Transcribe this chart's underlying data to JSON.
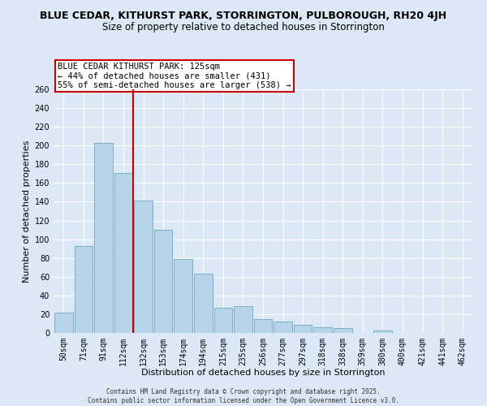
{
  "title": "BLUE CEDAR, KITHURST PARK, STORRINGTON, PULBOROUGH, RH20 4JH",
  "subtitle": "Size of property relative to detached houses in Storrington",
  "xlabel": "Distribution of detached houses by size in Storrington",
  "ylabel": "Number of detached properties",
  "categories": [
    "50sqm",
    "71sqm",
    "91sqm",
    "112sqm",
    "132sqm",
    "153sqm",
    "174sqm",
    "194sqm",
    "215sqm",
    "235sqm",
    "256sqm",
    "277sqm",
    "297sqm",
    "318sqm",
    "338sqm",
    "359sqm",
    "380sqm",
    "400sqm",
    "421sqm",
    "441sqm",
    "462sqm"
  ],
  "values": [
    22,
    93,
    203,
    171,
    141,
    110,
    79,
    63,
    27,
    29,
    15,
    12,
    9,
    6,
    5,
    0,
    3,
    0,
    0,
    0,
    0
  ],
  "bar_color": "#b8d4ea",
  "bar_edge_color": "#7aafc8",
  "vline_color": "#cc0000",
  "annotation_title": "BLUE CEDAR KITHURST PARK: 125sqm",
  "annotation_line2": "← 44% of detached houses are smaller (431)",
  "annotation_line3": "55% of semi-detached houses are larger (538) →",
  "annotation_box_color": "white",
  "annotation_box_edge": "#cc0000",
  "ylim": [
    0,
    260
  ],
  "yticks": [
    0,
    20,
    40,
    60,
    80,
    100,
    120,
    140,
    160,
    180,
    200,
    220,
    240,
    260
  ],
  "background_color": "#dce8f5",
  "plot_bg_color": "#dce8f5",
  "grid_color": "white",
  "footer_line1": "Contains HM Land Registry data © Crown copyright and database right 2025.",
  "footer_line2": "Contains public sector information licensed under the Open Government Licence v3.0.",
  "title_fontsize": 9,
  "subtitle_fontsize": 8.5,
  "axis_label_fontsize": 8,
  "tick_fontsize": 7,
  "annotation_fontsize": 7.5,
  "footer_fontsize": 5.5
}
